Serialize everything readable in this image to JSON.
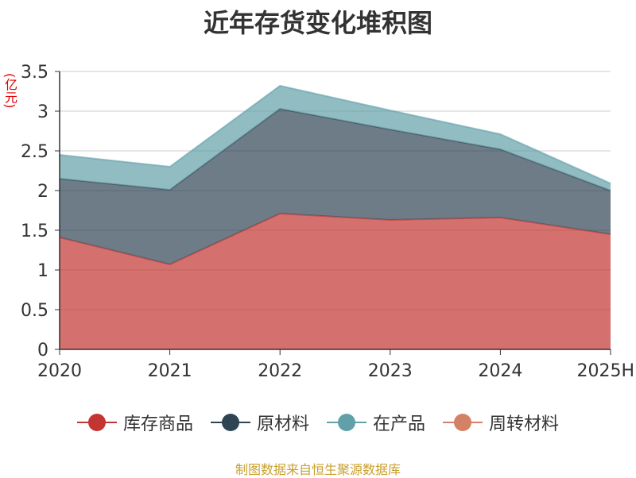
{
  "title": "近年存货变化堆积图",
  "unit_label": "(亿元)",
  "source_text": "制图数据来自恒生聚源数据库",
  "chart_data": {
    "type": "area",
    "stacked": true,
    "categories": [
      "2020",
      "2021",
      "2022",
      "2023",
      "2024",
      "2025H"
    ],
    "ylim": [
      0,
      3.5
    ],
    "yticks": [
      "0",
      "0.5",
      "1",
      "1.5",
      "2",
      "2.5",
      "3",
      "3.5"
    ],
    "grid": true,
    "legend_position": "bottom",
    "series": [
      {
        "name": "库存商品",
        "color": "#c23531",
        "values": [
          1.41,
          1.07,
          1.71,
          1.63,
          1.66,
          1.45
        ]
      },
      {
        "name": "原材料",
        "color": "#2f4554",
        "values": [
          0.74,
          0.94,
          1.32,
          1.14,
          0.86,
          0.55
        ]
      },
      {
        "name": "在产品",
        "color": "#61a0a8",
        "values": [
          0.3,
          0.29,
          0.29,
          0.24,
          0.19,
          0.09
        ]
      },
      {
        "name": "周转材料",
        "color": "#d48265",
        "values": [
          0.0,
          0.0,
          0.0,
          0.0,
          0.0,
          0.0
        ]
      }
    ]
  }
}
